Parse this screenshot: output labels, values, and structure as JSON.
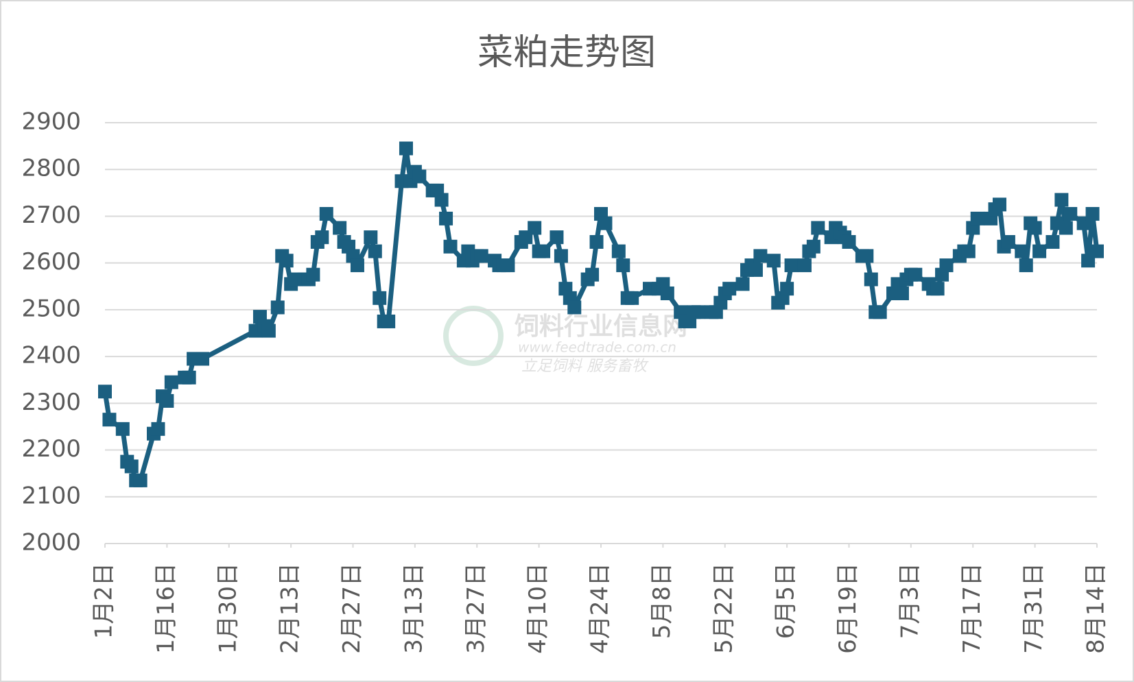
{
  "chart_data": {
    "type": "line",
    "title": "菜粕走势图",
    "xlim": [
      0,
      224
    ],
    "xticks": [
      {
        "value": 0,
        "label": "1月2日"
      },
      {
        "value": 14,
        "label": "1月16日"
      },
      {
        "value": 28,
        "label": "1月30日"
      },
      {
        "value": 42,
        "label": "2月13日"
      },
      {
        "value": 56,
        "label": "2月27日"
      },
      {
        "value": 70,
        "label": "3月13日"
      },
      {
        "value": 84,
        "label": "3月27日"
      },
      {
        "value": 98,
        "label": "4月10日"
      },
      {
        "value": 112,
        "label": "4月24日"
      },
      {
        "value": 126,
        "label": "5月8日"
      },
      {
        "value": 140,
        "label": "5月22日"
      },
      {
        "value": 154,
        "label": "6月5日"
      },
      {
        "value": 168,
        "label": "6月19日"
      },
      {
        "value": 182,
        "label": "7月3日"
      },
      {
        "value": 196,
        "label": "7月17日"
      },
      {
        "value": 210,
        "label": "7月31日"
      },
      {
        "value": 224,
        "label": "8月14日"
      }
    ],
    "ylim": [
      2000,
      2900
    ],
    "yticks": [
      2000,
      2100,
      2200,
      2300,
      2400,
      2500,
      2600,
      2700,
      2800,
      2900
    ],
    "grid": true,
    "x": [
      0,
      1,
      4,
      5,
      6,
      7,
      8,
      11,
      12,
      13,
      14,
      15,
      18,
      19,
      20,
      22,
      34,
      35,
      36,
      37,
      39,
      40,
      41,
      42,
      43,
      45,
      46,
      47,
      48,
      49,
      50,
      53,
      54,
      55,
      56,
      57,
      60,
      61,
      62,
      63,
      64,
      67,
      68,
      69,
      70,
      71,
      74,
      75,
      76,
      77,
      78,
      81,
      82,
      83,
      84,
      85,
      88,
      89,
      90,
      91,
      94,
      95,
      97,
      98,
      99,
      102,
      103,
      104,
      105,
      106,
      109,
      110,
      111,
      112,
      113,
      116,
      117,
      118,
      119,
      123,
      125,
      126,
      127,
      130,
      131,
      132,
      133,
      134,
      137,
      138,
      139,
      140,
      141,
      144,
      145,
      146,
      147,
      148,
      151,
      152,
      153,
      154,
      155,
      158,
      159,
      160,
      161,
      164,
      165,
      166,
      167,
      168,
      171,
      172,
      173,
      174,
      175,
      178,
      179,
      180,
      181,
      182,
      183,
      186,
      187,
      188,
      189,
      190,
      193,
      194,
      195,
      196,
      197,
      200,
      201,
      202,
      203,
      204,
      207,
      208,
      209,
      210,
      211,
      214,
      215,
      216,
      217,
      218,
      221,
      222,
      223,
      224
    ],
    "series": [
      {
        "name": "菜粕",
        "color": "#1b5f80",
        "values": [
          2325,
          2265,
          2245,
          2175,
          2165,
          2135,
          2135,
          2235,
          2245,
          2315,
          2305,
          2345,
          2355,
          2355,
          2395,
          2395,
          2455,
          2485,
          2465,
          2455,
          2505,
          2615,
          2605,
          2555,
          2565,
          2565,
          2565,
          2575,
          2645,
          2655,
          2705,
          2675,
          2645,
          2635,
          2615,
          2595,
          2655,
          2625,
          2525,
          2475,
          2475,
          2775,
          2845,
          2775,
          2795,
          2785,
          2755,
          2755,
          2735,
          2695,
          2635,
          2605,
          2625,
          2605,
          2615,
          2615,
          2605,
          2595,
          2595,
          2595,
          2645,
          2655,
          2675,
          2625,
          2625,
          2655,
          2615,
          2545,
          2525,
          2505,
          2565,
          2575,
          2645,
          2705,
          2685,
          2625,
          2595,
          2525,
          2525,
          2545,
          2545,
          2555,
          2535,
          2495,
          2475,
          2475,
          2495,
          2495,
          2495,
          2495,
          2515,
          2535,
          2545,
          2555,
          2585,
          2595,
          2585,
          2615,
          2605,
          2515,
          2525,
          2545,
          2595,
          2595,
          2625,
          2635,
          2675,
          2655,
          2675,
          2665,
          2655,
          2645,
          2615,
          2615,
          2565,
          2495,
          2495,
          2535,
          2555,
          2535,
          2565,
          2575,
          2575,
          2555,
          2545,
          2545,
          2575,
          2595,
          2615,
          2625,
          2625,
          2675,
          2695,
          2695,
          2715,
          2725,
          2635,
          2645,
          2625,
          2595,
          2685,
          2675,
          2625,
          2645,
          2685,
          2735,
          2675,
          2705,
          2685,
          2605,
          2705,
          2625
        ]
      }
    ],
    "watermark": [
      "饲料行业信息网",
      "www.feedtrade.com.cn",
      "立足饲料  服务畜牧"
    ]
  }
}
